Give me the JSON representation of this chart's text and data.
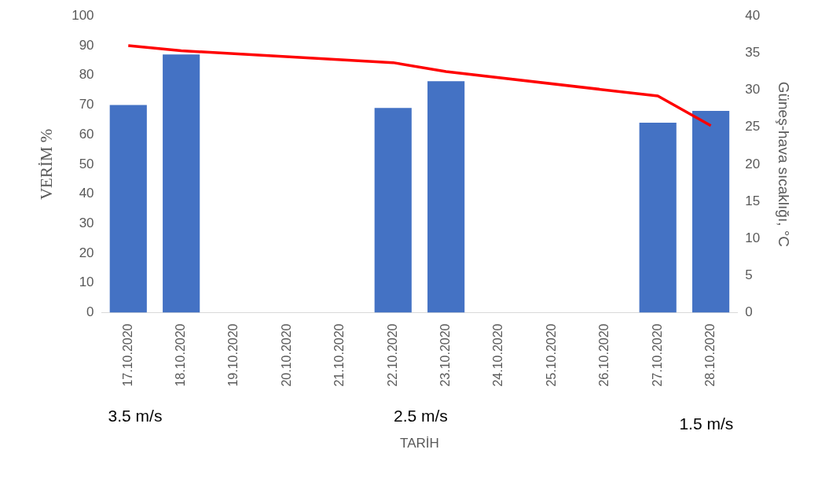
{
  "chart_data": {
    "type": "bar",
    "xlabel": "TARİH",
    "ylabel": "VERİM %",
    "y2label": "Güneş-hava sıcaklığı, °C",
    "categories": [
      "17.10.2020",
      "18.10.2020",
      "19.10.2020",
      "20.10.2020",
      "21.10.2020",
      "22.10.2020",
      "23.10.2020",
      "24.10.2020",
      "25.10.2020",
      "26.10.2020",
      "27.10.2020",
      "28.10.2020"
    ],
    "series": [
      {
        "color": "#4472c4",
        "values": [
          70,
          87,
          null,
          null,
          null,
          69,
          78,
          null,
          null,
          null,
          64,
          68
        ]
      },
      {
        "type": "line",
        "axis": "y2",
        "color": "#ff0000",
        "marker": "none",
        "values": [
          36,
          35.3,
          null,
          null,
          null,
          33.7,
          32.5,
          null,
          null,
          null,
          29.2,
          25.2
        ]
      }
    ],
    "ylim": [
      0,
      100
    ],
    "yticks": [
      0,
      10,
      20,
      30,
      40,
      50,
      60,
      70,
      80,
      90,
      100
    ],
    "y2lim": [
      0,
      40
    ],
    "y2ticks": [
      0,
      5,
      10,
      15,
      20,
      25,
      30,
      35,
      40
    ],
    "grid": false,
    "legend": false,
    "annotations": [
      "3.5 m/s",
      "2.5 m/s",
      "1.5 m/s"
    ]
  }
}
